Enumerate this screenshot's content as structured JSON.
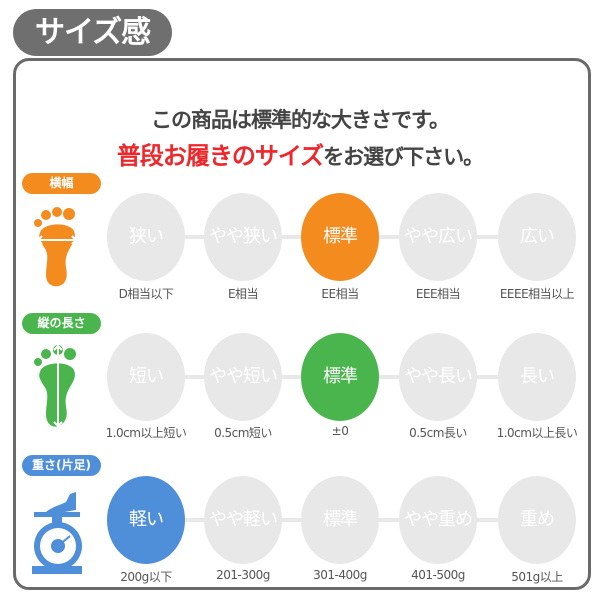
{
  "title": "サイズ感",
  "heading": {
    "line1": "この商品は標準的な大きさです。",
    "line2_emphasis": "普段お履きのサイズ",
    "line2_rest": "をお選び下さい。"
  },
  "colors": {
    "width": "#f38b1e",
    "length": "#4bb54d",
    "weight": "#4f8ed8",
    "inactive": "#e8e8e8"
  },
  "rows": [
    {
      "label": "横幅",
      "icon": "foot-width-icon",
      "selected": 2,
      "options": [
        {
          "label": "狭い",
          "caption": "D相当以下"
        },
        {
          "label": "やや狭い",
          "caption": "E相当"
        },
        {
          "label": "標準",
          "caption": "EE相当"
        },
        {
          "label": "やや広い",
          "caption": "EEE相当"
        },
        {
          "label": "広い",
          "caption": "EEEE相当以上"
        }
      ]
    },
    {
      "label": "縦の長さ",
      "icon": "foot-length-icon",
      "selected": 2,
      "options": [
        {
          "label": "短い",
          "caption": "1.0cm以上短い"
        },
        {
          "label": "やや短い",
          "caption": "0.5cm短い"
        },
        {
          "label": "標準",
          "caption": "±0"
        },
        {
          "label": "やや長い",
          "caption": "0.5cm長い"
        },
        {
          "label": "長い",
          "caption": "1.0cm以上長い"
        }
      ]
    },
    {
      "label": "重さ(片足)",
      "icon": "scale-icon",
      "selected": 0,
      "options": [
        {
          "label": "軽い",
          "caption": "200g以下"
        },
        {
          "label": "やや軽い",
          "caption": "201-300g"
        },
        {
          "label": "標準",
          "caption": "301-400g"
        },
        {
          "label": "やや重め",
          "caption": "401-500g"
        },
        {
          "label": "重め",
          "caption": "501g以上"
        }
      ]
    }
  ]
}
